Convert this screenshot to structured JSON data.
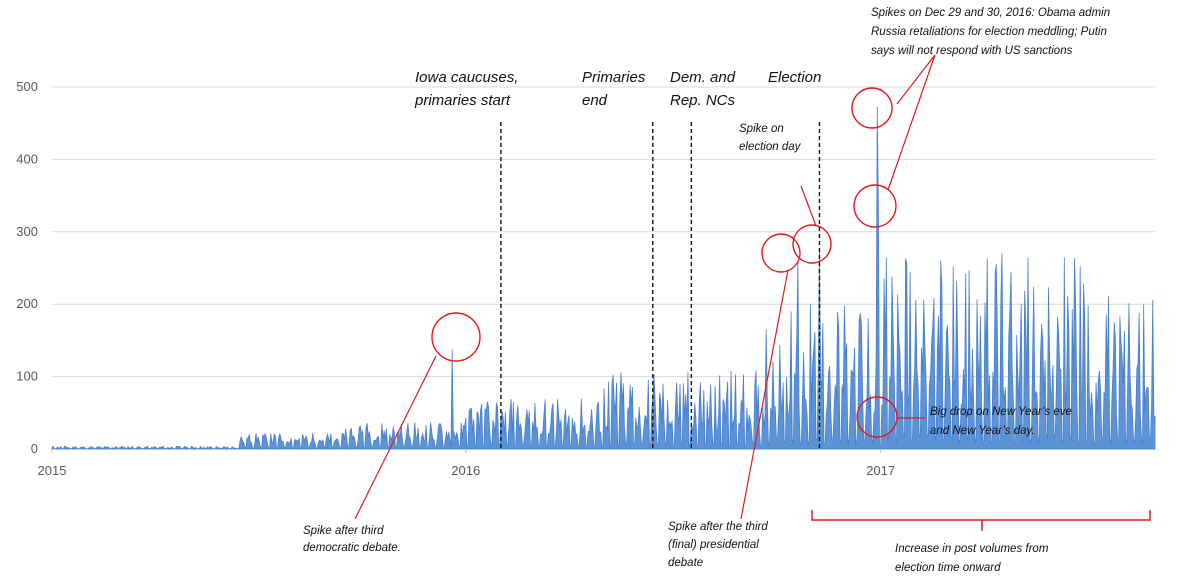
{
  "chart_data": {
    "type": "area",
    "title": "",
    "xlabel": "",
    "ylabel": "",
    "ylim": [
      0,
      500
    ],
    "y_ticks": [
      "0",
      "100",
      "200",
      "300",
      "400",
      "500"
    ],
    "x_ticks": [
      {
        "label": "2015",
        "date": "2015-01-01"
      },
      {
        "label": "2016",
        "date": "2016-01-01"
      },
      {
        "label": "2017",
        "date": "2017-01-01"
      }
    ],
    "x_range": [
      "2015-01-01",
      "2017-08-31"
    ],
    "grid": "horizontal",
    "legend": "none",
    "series_color": "#4a7fcb",
    "series_fill": "#5b93d6",
    "phases": [
      {
        "start": "2015-01-01",
        "end": "2015-06-15",
        "base": 1,
        "peak": 4
      },
      {
        "start": "2015-06-15",
        "end": "2015-09-15",
        "base": 8,
        "peak": 22
      },
      {
        "start": "2015-09-15",
        "end": "2015-12-31",
        "base": 12,
        "peak": 38
      },
      {
        "start": "2016-01-01",
        "end": "2016-04-30",
        "base": 20,
        "peak": 70
      },
      {
        "start": "2016-05-01",
        "end": "2016-09-20",
        "base": 25,
        "peak": 110
      },
      {
        "start": "2016-09-21",
        "end": "2016-12-31",
        "base": 45,
        "peak": 200
      },
      {
        "start": "2017-01-01",
        "end": "2017-06-30",
        "base": 60,
        "peak": 280
      },
      {
        "start": "2017-07-01",
        "end": "2017-08-31",
        "base": 45,
        "peak": 220
      }
    ],
    "notable_points": [
      {
        "date": "2015-12-20",
        "value": 137
      },
      {
        "date": "2016-10-20",
        "value": 258
      },
      {
        "date": "2016-11-08",
        "value": 272
      },
      {
        "date": "2016-12-29",
        "value": 472
      },
      {
        "date": "2016-12-30",
        "value": 330
      },
      {
        "date": "2016-12-31",
        "value": 5
      },
      {
        "date": "2017-01-01",
        "value": 5
      }
    ],
    "event_lines": [
      {
        "date": "2016-02-01",
        "label_lines": [
          "Iowa caucuses,",
          "primaries start"
        ]
      },
      {
        "date": "2016-06-14",
        "label_lines": [
          "Primaries",
          "end"
        ]
      },
      {
        "date": "2016-07-18",
        "label_lines": [
          "Dem. and",
          "Rep. NCs"
        ]
      },
      {
        "date": "2016-11-08",
        "label_lines": [
          "Election"
        ]
      }
    ],
    "annotations": [
      {
        "id": "third-dem-debate",
        "lines": [
          "Spike after third",
          "democratic debate."
        ]
      },
      {
        "id": "third-pres-debate",
        "lines": [
          "Spike after the third",
          "(final) presidential",
          "debate"
        ]
      },
      {
        "id": "election-day",
        "lines": [
          "Spike on",
          "election day"
        ]
      },
      {
        "id": "dec-29-30",
        "lines": [
          "Spikes on Dec 29 and 30, 2016: Obama admin",
          "Russia retaliations for election meddling; Putin",
          "says will not respond with US sanctions"
        ]
      },
      {
        "id": "new-year",
        "lines": [
          "Big drop on New Year’s eve",
          "and New Year’s day."
        ]
      },
      {
        "id": "post-volume",
        "lines": [
          "Increase in post volumes from",
          "election time onward"
        ]
      }
    ],
    "annotation_color": "#e21a1a"
  }
}
